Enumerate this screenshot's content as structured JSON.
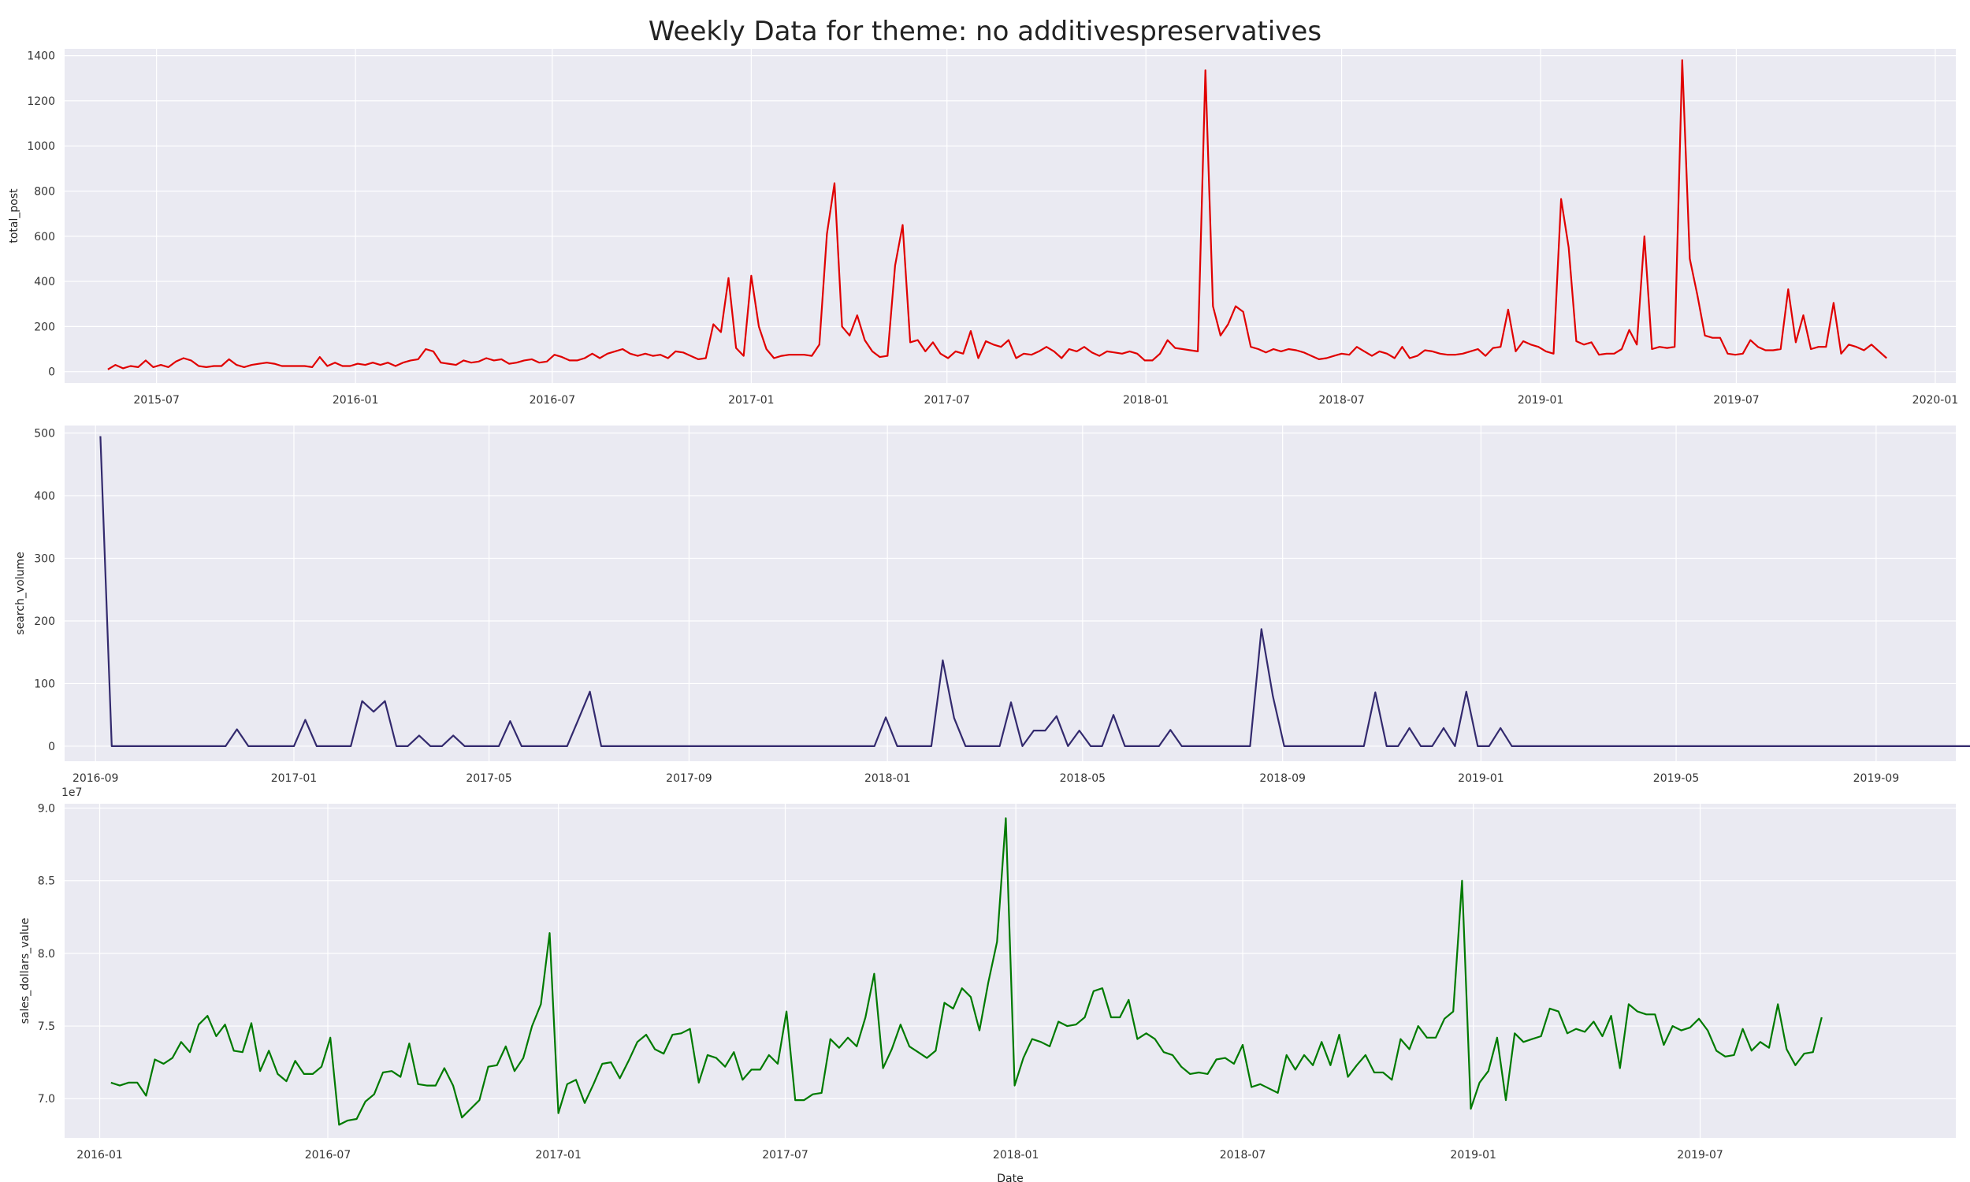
{
  "figure": {
    "title": "Weekly Data for theme: no additivespreservatives"
  },
  "chart_data": [
    {
      "type": "line",
      "ylabel": "total_post",
      "xlabel": "",
      "color": "#e00000",
      "xlim": [
        "2015-04-07",
        "2020-01-20"
      ],
      "ylim": [
        -50,
        1430
      ],
      "yticks": [
        0,
        200,
        400,
        600,
        800,
        1000,
        1200,
        1400
      ],
      "xticks": [
        "2015-07-01",
        "2016-01-01",
        "2016-07-01",
        "2017-01-01",
        "2017-07-01",
        "2018-01-01",
        "2018-07-01",
        "2019-01-01",
        "2019-07-01",
        "2020-01-01"
      ],
      "xtick_labels": [
        "2015-07",
        "2016-01",
        "2016-07",
        "2017-01",
        "2017-07",
        "2018-01",
        "2018-07",
        "2019-01",
        "2019-07",
        "2020-01"
      ],
      "grid": true,
      "start_date": "2015-05-17",
      "step_days": 7,
      "values": [
        10,
        30,
        15,
        25,
        20,
        50,
        20,
        30,
        20,
        45,
        60,
        50,
        25,
        20,
        25,
        25,
        55,
        30,
        20,
        30,
        35,
        40,
        35,
        25,
        25,
        25,
        25,
        20,
        65,
        25,
        40,
        25,
        25,
        35,
        30,
        40,
        30,
        40,
        25,
        40,
        50,
        55,
        100,
        90,
        40,
        35,
        30,
        50,
        40,
        45,
        60,
        50,
        55,
        35,
        40,
        50,
        55,
        40,
        45,
        75,
        65,
        50,
        50,
        60,
        80,
        60,
        80,
        90,
        100,
        80,
        70,
        80,
        70,
        75,
        60,
        90,
        85,
        70,
        55,
        60,
        210,
        175,
        415,
        105,
        70,
        425,
        200,
        100,
        60,
        70,
        75,
        75,
        75,
        70,
        120,
        610,
        835,
        200,
        160,
        250,
        140,
        90,
        65,
        70,
        470,
        650,
        130,
        140,
        90,
        130,
        80,
        60,
        90,
        80,
        180,
        60,
        135,
        120,
        110,
        140,
        60,
        80,
        75,
        90,
        110,
        90,
        60,
        100,
        90,
        110,
        85,
        70,
        90,
        85,
        80,
        90,
        80,
        50,
        50,
        80,
        140,
        105,
        100,
        95,
        90,
        1335,
        290,
        160,
        210,
        290,
        265,
        110,
        100,
        85,
        100,
        90,
        100,
        95,
        85,
        70,
        55,
        60,
        70,
        80,
        75,
        110,
        90,
        70,
        90,
        80,
        60,
        110,
        60,
        70,
        95,
        90,
        80,
        75,
        75,
        80,
        90,
        100,
        70,
        105,
        110,
        275,
        90,
        135,
        120,
        110,
        90,
        80,
        765,
        550,
        135,
        120,
        130,
        75,
        80,
        80,
        100,
        185,
        120,
        600,
        100,
        110,
        105,
        110,
        1380,
        500,
        340,
        160,
        150,
        150,
        80,
        75,
        80,
        140,
        110,
        95,
        95,
        100,
        365,
        130,
        250,
        100,
        110,
        110,
        305,
        80,
        120,
        110,
        95,
        120,
        90,
        60
      ]
    },
    {
      "type": "line",
      "ylabel": "search_volume",
      "xlabel": "",
      "color": "#332a6e",
      "xlim": [
        "2016-08-13",
        "2019-10-20"
      ],
      "ylim": [
        -24,
        512
      ],
      "yticks": [
        0,
        100,
        200,
        300,
        400,
        500
      ],
      "xticks": [
        "2016-09-01",
        "2017-01-01",
        "2017-05-01",
        "2017-09-01",
        "2018-01-01",
        "2018-05-01",
        "2018-09-01",
        "2019-01-01",
        "2019-05-01",
        "2019-09-01"
      ],
      "xtick_labels": [
        "2016-09",
        "2017-01",
        "2017-05",
        "2017-09",
        "2018-01",
        "2018-05",
        "2018-09",
        "2019-01",
        "2019-05",
        "2019-09"
      ],
      "grid": true,
      "start_date": "2016-09-04",
      "step_days": 7,
      "values": [
        495,
        0,
        0,
        0,
        0,
        0,
        0,
        0,
        0,
        0,
        0,
        0,
        27,
        0,
        0,
        0,
        0,
        0,
        42,
        0,
        0,
        0,
        0,
        72,
        55,
        72,
        0,
        0,
        17,
        0,
        0,
        17,
        0,
        0,
        0,
        0,
        40,
        0,
        0,
        0,
        0,
        0,
        43,
        87,
        0,
        0,
        0,
        0,
        0,
        0,
        0,
        0,
        0,
        0,
        0,
        0,
        0,
        0,
        0,
        0,
        0,
        0,
        0,
        0,
        0,
        0,
        0,
        0,
        0,
        46,
        0,
        0,
        0,
        0,
        137,
        45,
        0,
        0,
        0,
        0,
        70,
        0,
        25,
        25,
        48,
        0,
        25,
        0,
        0,
        50,
        0,
        0,
        0,
        0,
        26,
        0,
        0,
        0,
        0,
        0,
        0,
        0,
        187,
        80,
        0,
        0,
        0,
        0,
        0,
        0,
        0,
        0,
        86,
        0,
        0,
        29,
        0,
        0,
        29,
        0,
        87,
        0,
        0,
        29,
        0,
        0,
        0,
        0,
        0,
        0,
        0,
        0,
        0,
        0,
        0,
        0,
        0,
        0,
        0,
        0,
        0,
        0,
        0,
        0,
        0,
        0,
        0,
        0,
        0,
        0,
        0,
        0,
        0,
        0,
        0,
        0,
        0,
        0,
        0,
        0,
        0,
        0,
        0,
        0,
        0,
        0,
        0,
        0,
        0,
        66,
        0,
        0,
        0,
        82,
        0,
        0,
        0,
        0,
        0,
        0,
        0,
        0,
        0,
        0,
        0,
        0,
        35,
        0,
        0,
        35
      ]
    },
    {
      "type": "line",
      "ylabel": "sales_dollars_value",
      "xlabel": "Date",
      "color": "#007a00",
      "scale_label": "1e7",
      "scale": 10000000,
      "xlim": [
        "2015-12-04",
        "2020-01-21"
      ],
      "ylim": [
        67300000,
        90300000
      ],
      "yticks": [
        70000000,
        75000000,
        80000000,
        85000000,
        90000000
      ],
      "ytick_labels": [
        "7.0",
        "7.5",
        "8.0",
        "8.5",
        "9.0"
      ],
      "xticks": [
        "2016-01-01",
        "2016-07-01",
        "2017-01-01",
        "2017-07-01",
        "2018-01-01",
        "2018-07-01",
        "2019-01-01",
        "2019-07-01"
      ],
      "xtick_labels": [
        "2016-01",
        "2016-07",
        "2017-01",
        "2017-07",
        "2018-01",
        "2018-07",
        "2019-01",
        "2019-07"
      ],
      "grid": true,
      "start_date": "2016-01-10",
      "step_days": 7,
      "values": [
        71100000,
        70900000,
        71100000,
        71100000,
        70200000,
        72700000,
        72400000,
        72800000,
        73900000,
        73200000,
        75100000,
        75700000,
        74300000,
        75100000,
        73300000,
        73200000,
        75200000,
        71900000,
        73300000,
        71700000,
        71200000,
        72600000,
        71700000,
        71700000,
        72200000,
        74200000,
        68200000,
        68500000,
        68600000,
        69800000,
        70300000,
        71800000,
        71900000,
        71500000,
        73800000,
        71000000,
        70900000,
        70900000,
        72100000,
        70900000,
        68700000,
        69300000,
        69900000,
        72200000,
        72300000,
        73600000,
        71900000,
        72800000,
        75000000,
        76500000,
        81400000,
        69000000,
        71000000,
        71300000,
        69700000,
        71000000,
        72400000,
        72500000,
        71400000,
        72600000,
        73900000,
        74400000,
        73400000,
        73100000,
        74400000,
        74500000,
        74800000,
        71100000,
        73000000,
        72800000,
        72200000,
        73200000,
        71300000,
        72000000,
        72000000,
        73000000,
        72400000,
        76000000,
        69900000,
        69900000,
        70300000,
        70400000,
        74100000,
        73500000,
        74200000,
        73600000,
        75600000,
        78600000,
        72100000,
        73400000,
        75100000,
        73600000,
        73200000,
        72800000,
        73300000,
        76600000,
        76200000,
        77600000,
        77000000,
        74700000,
        78000000,
        80800000,
        89300000,
        70900000,
        72800000,
        74100000,
        73900000,
        73600000,
        75300000,
        75000000,
        75100000,
        75600000,
        77400000,
        77600000,
        75600000,
        75600000,
        76800000,
        74100000,
        74500000,
        74100000,
        73200000,
        73000000,
        72200000,
        71700000,
        71800000,
        71700000,
        72700000,
        72800000,
        72400000,
        73700000,
        70800000,
        71000000,
        70700000,
        70400000,
        73000000,
        72000000,
        73000000,
        72300000,
        73900000,
        72300000,
        74400000,
        71500000,
        72300000,
        73000000,
        71800000,
        71800000,
        71300000,
        74100000,
        73400000,
        75000000,
        74200000,
        74200000,
        75500000,
        76000000,
        85000000,
        69300000,
        71100000,
        71900000,
        74200000,
        69900000,
        74500000,
        73900000,
        74100000,
        74300000,
        76200000,
        76000000,
        74500000,
        74800000,
        74600000,
        75300000,
        74300000,
        75700000,
        72100000,
        76500000,
        76000000,
        75800000,
        75800000,
        73700000,
        75000000,
        74700000,
        74900000,
        75500000,
        74700000,
        73300000,
        72900000,
        73000000,
        74800000,
        73300000,
        73900000,
        73500000,
        76500000,
        73400000,
        72300000,
        73100000,
        73200000,
        75600000
      ]
    }
  ]
}
